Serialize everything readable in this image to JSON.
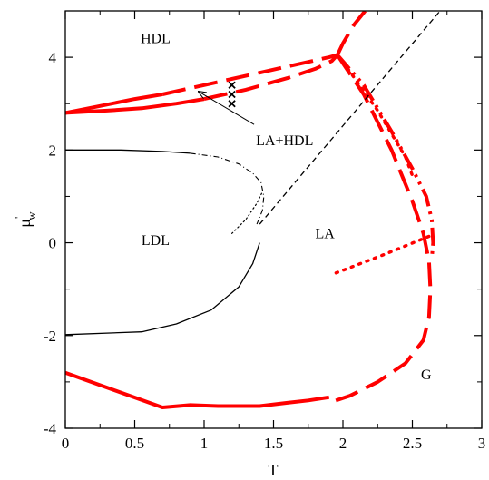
{
  "chart_data": {
    "type": "line",
    "title": "",
    "xlabel": "T",
    "ylabel": "μ'w",
    "ylabel_main": "μ",
    "ylabel_sup": "'",
    "ylabel_sub": "w",
    "xlim": [
      0,
      3
    ],
    "ylim": [
      -4,
      5
    ],
    "grid": false,
    "legend": "none",
    "x_ticks": [
      0,
      0.5,
      1,
      1.5,
      2,
      2.5,
      3
    ],
    "x_tick_labels": [
      "0",
      "0.5",
      "1",
      "1.5",
      "2",
      "2.5",
      "3"
    ],
    "y_ticks": [
      -4,
      -2,
      0,
      2,
      4
    ],
    "y_tick_labels": [
      "-4",
      "-2",
      "0",
      "2",
      "4"
    ],
    "colors": {
      "red": "#ff0000",
      "black": "#000000"
    },
    "region_labels": [
      {
        "text": "HDL",
        "x": 0.65,
        "y": 4.4
      },
      {
        "text": "LDL",
        "x": 0.65,
        "y": 0.05
      },
      {
        "text": "LA",
        "x": 1.87,
        "y": 0.2
      },
      {
        "text": "G",
        "x": 2.6,
        "y": -2.85
      },
      {
        "text": "LA+HDL",
        "x": 1.58,
        "y": 2.2
      }
    ],
    "annotation_arrow": {
      "from": [
        1.36,
        2.55
      ],
      "to": [
        0.96,
        3.26
      ]
    },
    "markers": [
      {
        "x": 1.2,
        "y": 3.4
      },
      {
        "x": 1.2,
        "y": 3.2
      },
      {
        "x": 1.2,
        "y": 3.0
      }
    ],
    "series": [
      {
        "style": "red-solid",
        "color": "#ff0000",
        "width": 4,
        "dash": "",
        "x": [
          0,
          0.3,
          0.55,
          0.8,
          1.0
        ],
        "y": [
          2.8,
          2.85,
          2.9,
          3.0,
          3.1
        ]
      },
      {
        "style": "red-solid",
        "color": "#ff0000",
        "width": 4,
        "dash": "",
        "x": [
          0,
          0.25,
          0.5,
          0.7
        ],
        "y": [
          2.8,
          2.95,
          3.1,
          3.2
        ]
      },
      {
        "style": "red-dashed",
        "color": "#ff0000",
        "width": 4,
        "dash": "26 10",
        "x": [
          0.7,
          1.0,
          1.3,
          1.6,
          1.9,
          1.96
        ],
        "y": [
          3.2,
          3.4,
          3.6,
          3.8,
          4.0,
          4.05
        ]
      },
      {
        "style": "red-dashed",
        "color": "#ff0000",
        "width": 4,
        "dash": "26 10",
        "x": [
          1.0,
          1.3,
          1.6,
          1.8,
          1.92,
          1.96
        ],
        "y": [
          3.1,
          3.3,
          3.55,
          3.75,
          3.92,
          4.05
        ]
      },
      {
        "style": "red-dashed",
        "color": "#ff0000",
        "width": 4,
        "dash": "26 10",
        "x": [
          1.96,
          2.0,
          2.08,
          2.16
        ],
        "y": [
          4.05,
          4.3,
          4.7,
          5.0
        ]
      },
      {
        "style": "red-dashed",
        "color": "#ff0000",
        "width": 4,
        "dash": "26 10",
        "x": [
          1.96,
          2.15,
          2.35,
          2.5,
          2.58,
          2.62,
          2.63,
          2.62,
          2.58,
          2.45,
          2.25,
          2.05,
          1.9
        ],
        "y": [
          4.05,
          3.2,
          2.0,
          0.9,
          0.2,
          -0.4,
          -1.0,
          -1.6,
          -2.1,
          -2.6,
          -3.0,
          -3.3,
          -3.45
        ]
      },
      {
        "style": "red-dashdot",
        "color": "#ff0000",
        "width": 4,
        "dash": "20 6 3 6 3 6",
        "x": [
          1.96,
          2.15,
          2.35,
          2.5,
          2.6,
          2.64,
          2.65,
          2.64
        ],
        "y": [
          4.05,
          3.4,
          2.4,
          1.6,
          1.0,
          0.5,
          0.0,
          -0.35
        ]
      },
      {
        "style": "red-dotted",
        "color": "#ff0000",
        "width": 3.5,
        "dash": "2 7",
        "x": [
          2.0,
          2.25,
          2.45,
          2.5
        ],
        "y": [
          3.9,
          2.85,
          1.85,
          1.45
        ]
      },
      {
        "style": "red-dotted",
        "color": "#ff0000",
        "width": 3.5,
        "dash": "2 7",
        "x": [
          1.95,
          2.3,
          2.63
        ],
        "y": [
          -0.65,
          -0.25,
          0.15
        ]
      },
      {
        "style": "red-solid",
        "color": "#ff0000",
        "width": 4,
        "dash": "",
        "x": [
          0,
          0.7,
          0.9,
          1.1,
          1.4,
          1.6,
          1.75,
          1.9
        ],
        "y": [
          -2.8,
          -3.55,
          -3.5,
          -3.52,
          -3.52,
          -3.45,
          -3.4,
          -3.33
        ]
      },
      {
        "style": "black-solid",
        "color": "#000000",
        "width": 1.3,
        "dash": "",
        "x": [
          0,
          0.4,
          0.7,
          0.9
        ],
        "y": [
          2.0,
          2.0,
          1.97,
          1.93
        ]
      },
      {
        "style": "black-dashdot",
        "color": "#000000",
        "width": 1.1,
        "dash": "6 3 1 3",
        "x": [
          0.9,
          1.1,
          1.25,
          1.35,
          1.41,
          1.43,
          1.42,
          1.38
        ],
        "y": [
          1.93,
          1.85,
          1.7,
          1.5,
          1.3,
          1.0,
          0.7,
          0.4
        ]
      },
      {
        "style": "black-dotted",
        "color": "#000000",
        "width": 1.2,
        "dash": "1.5 3",
        "x": [
          1.2,
          1.3,
          1.38,
          1.42
        ],
        "y": [
          0.2,
          0.5,
          0.85,
          1.1
        ]
      },
      {
        "style": "black-solid",
        "color": "#000000",
        "width": 1.3,
        "dash": "",
        "x": [
          0,
          0.55,
          0.8,
          1.05,
          1.25,
          1.35,
          1.4
        ],
        "y": [
          -1.98,
          -1.92,
          -1.75,
          -1.45,
          -0.95,
          -0.45,
          0.0
        ]
      },
      {
        "style": "black-dashed",
        "color": "#000000",
        "width": 1.3,
        "dash": "6 4",
        "x": [
          1.4,
          2.7
        ],
        "y": [
          0.4,
          5.0
        ]
      }
    ]
  }
}
